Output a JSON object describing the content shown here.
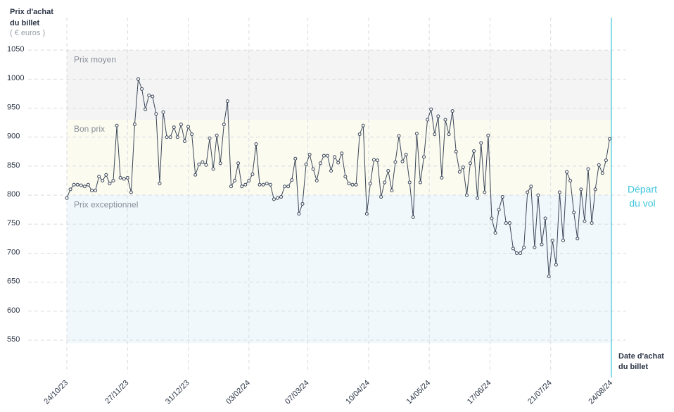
{
  "chart_data": {
    "type": "line",
    "y_axis_title": [
      "Prix d'achat",
      "du billet"
    ],
    "y_axis_unit": "( € euros )",
    "x_axis_title": [
      "Date d'achat",
      "du billet"
    ],
    "departure": {
      "date": "2024-08-24",
      "label": [
        "Départ",
        "du vol"
      ],
      "color": "#3fc6dc"
    },
    "bands": [
      {
        "label": "Prix moyen",
        "from": 930,
        "to": 1050,
        "color": "#f4f4f5"
      },
      {
        "label": "Bon prix",
        "from": 800,
        "to": 930,
        "color": "#fbfbf0"
      },
      {
        "label": "Prix exceptionnel",
        "from": 545,
        "to": 800,
        "color": "#f1f8fc"
      }
    ],
    "grid": true,
    "color": "#3b4657",
    "xlim": [
      "2023-10-24",
      "2024-08-24"
    ],
    "xticks": [
      {
        "value": "2023-10-24",
        "label": "24/10/23"
      },
      {
        "value": "2023-11-27",
        "label": "27/11/23"
      },
      {
        "value": "2023-12-31",
        "label": "31/12/23"
      },
      {
        "value": "2024-02-03",
        "label": "03/02/24"
      },
      {
        "value": "2024-03-07",
        "label": "07/03/24"
      },
      {
        "value": "2024-04-10",
        "label": "10/04/24"
      },
      {
        "value": "2024-05-14",
        "label": "14/05/24"
      },
      {
        "value": "2024-06-17",
        "label": "17/06/24"
      },
      {
        "value": "2024-07-21",
        "label": "21/07/24"
      },
      {
        "value": "2024-08-24",
        "label": "24/08/24"
      }
    ],
    "ylim": [
      493,
      1106
    ],
    "yticks": [
      550,
      600,
      650,
      700,
      750,
      800,
      850,
      900,
      950,
      1000,
      1050
    ],
    "x": [
      "2023-10-24",
      "2023-10-26",
      "2023-10-28",
      "2023-10-30",
      "2023-11-01",
      "2023-11-03",
      "2023-11-05",
      "2023-11-07",
      "2023-11-09",
      "2023-11-11",
      "2023-11-13",
      "2023-11-15",
      "2023-11-17",
      "2023-11-19",
      "2023-11-21",
      "2023-11-23",
      "2023-11-25",
      "2023-11-27",
      "2023-11-29",
      "2023-12-01",
      "2023-12-03",
      "2023-12-05",
      "2023-12-07",
      "2023-12-09",
      "2023-12-11",
      "2023-12-13",
      "2023-12-15",
      "2023-12-17",
      "2023-12-19",
      "2023-12-21",
      "2023-12-23",
      "2023-12-25",
      "2023-12-27",
      "2023-12-29",
      "2023-12-31",
      "2024-01-02",
      "2024-01-04",
      "2024-01-06",
      "2024-01-08",
      "2024-01-10",
      "2024-01-12",
      "2024-01-14",
      "2024-01-16",
      "2024-01-18",
      "2024-01-20",
      "2024-01-22",
      "2024-01-24",
      "2024-01-26",
      "2024-01-28",
      "2024-01-30",
      "2024-02-01",
      "2024-02-03",
      "2024-02-05",
      "2024-02-07",
      "2024-02-09",
      "2024-02-11",
      "2024-02-13",
      "2024-02-15",
      "2024-02-17",
      "2024-02-19",
      "2024-02-21",
      "2024-02-23",
      "2024-02-25",
      "2024-02-27",
      "2024-02-29",
      "2024-03-02",
      "2024-03-04",
      "2024-03-06",
      "2024-03-08",
      "2024-03-10",
      "2024-03-12",
      "2024-03-14",
      "2024-03-16",
      "2024-03-18",
      "2024-03-20",
      "2024-03-22",
      "2024-03-24",
      "2024-03-26",
      "2024-03-28",
      "2024-03-30",
      "2024-04-01",
      "2024-04-03",
      "2024-04-05",
      "2024-04-07",
      "2024-04-09",
      "2024-04-11",
      "2024-04-13",
      "2024-04-15",
      "2024-04-17",
      "2024-04-19",
      "2024-04-21",
      "2024-04-23",
      "2024-04-25",
      "2024-04-27",
      "2024-04-29",
      "2024-05-01",
      "2024-05-03",
      "2024-05-05",
      "2024-05-07",
      "2024-05-09",
      "2024-05-11",
      "2024-05-13",
      "2024-05-15",
      "2024-05-17",
      "2024-05-19",
      "2024-05-21",
      "2024-05-23",
      "2024-05-25",
      "2024-05-27",
      "2024-05-29",
      "2024-05-31",
      "2024-06-02",
      "2024-06-04",
      "2024-06-06",
      "2024-06-08",
      "2024-06-10",
      "2024-06-12",
      "2024-06-14",
      "2024-06-16",
      "2024-06-18",
      "2024-06-20",
      "2024-06-22",
      "2024-06-24",
      "2024-06-26",
      "2024-06-28",
      "2024-06-30",
      "2024-07-02",
      "2024-07-04",
      "2024-07-06",
      "2024-07-08",
      "2024-07-10",
      "2024-07-12",
      "2024-07-14",
      "2024-07-16",
      "2024-07-18",
      "2024-07-20",
      "2024-07-22",
      "2024-07-24",
      "2024-07-26",
      "2024-07-28",
      "2024-07-30",
      "2024-08-01",
      "2024-08-03",
      "2024-08-05",
      "2024-08-07",
      "2024-08-09",
      "2024-08-11",
      "2024-08-13",
      "2024-08-15",
      "2024-08-17",
      "2024-08-19",
      "2024-08-21",
      "2024-08-23"
    ],
    "values": [
      795,
      810,
      818,
      818,
      817,
      815,
      818,
      808,
      808,
      832,
      825,
      835,
      820,
      825,
      920,
      830,
      828,
      830,
      805,
      922,
      1000,
      983,
      948,
      972,
      970,
      940,
      820,
      943,
      900,
      900,
      917,
      900,
      922,
      893,
      918,
      905,
      835,
      853,
      857,
      852,
      898,
      845,
      903,
      855,
      922,
      962,
      815,
      825,
      855,
      815,
      818,
      825,
      836,
      888,
      818,
      818,
      820,
      818,
      793,
      795,
      797,
      815,
      815,
      826,
      863,
      768,
      785,
      853,
      870,
      845,
      825,
      855,
      868,
      868,
      842,
      866,
      856,
      872,
      832,
      820,
      818,
      818,
      905,
      920,
      768,
      820,
      861,
      860,
      797,
      822,
      842,
      808,
      857,
      902,
      858,
      870,
      822,
      762,
      906,
      822,
      866,
      930,
      948,
      905,
      936,
      830,
      930,
      905,
      945,
      875,
      840,
      848,
      800,
      855,
      876,
      795,
      890,
      805,
      903,
      760,
      735,
      775,
      797,
      752,
      752,
      708,
      700,
      700,
      710,
      805,
      815,
      710,
      800,
      715,
      760,
      660,
      722,
      680,
      805,
      722,
      840,
      825,
      770,
      725,
      810,
      755,
      845,
      752,
      810,
      852,
      838,
      860,
      897
    ]
  }
}
